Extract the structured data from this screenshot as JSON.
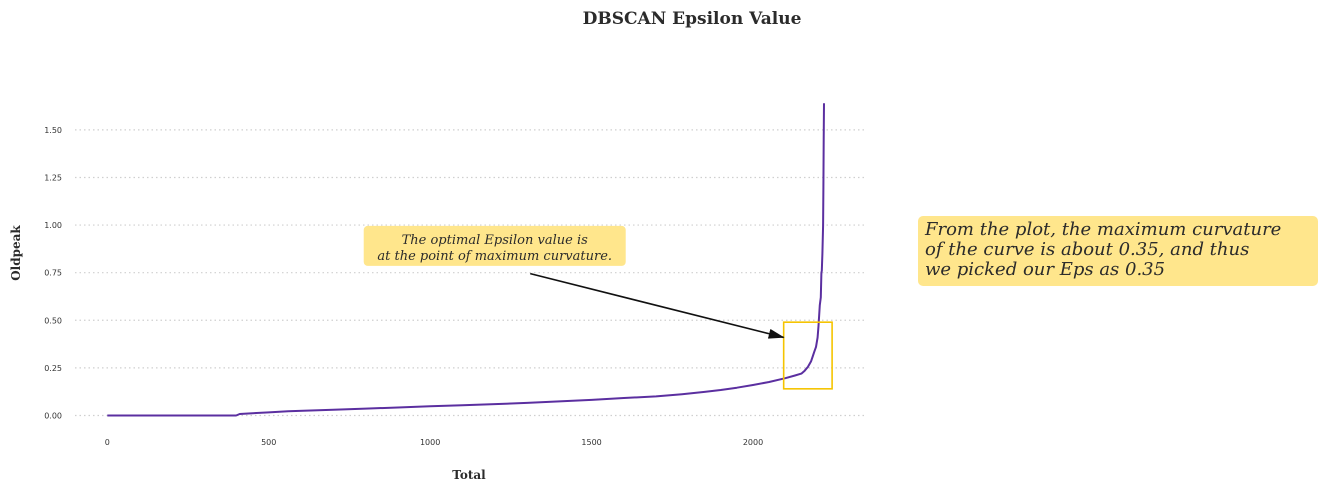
{
  "chart_data": {
    "type": "line",
    "title": "DBSCAN Epsilon Value",
    "xlabel": "Total",
    "ylabel": "Oldpeak",
    "xlim": [
      -100,
      2350
    ],
    "ylim": [
      -0.05,
      1.72
    ],
    "xticks": [
      0,
      500,
      1000,
      1500,
      2000
    ],
    "yticks": [
      0.0,
      0.25,
      0.5,
      0.75,
      1.0,
      1.25,
      1.5
    ],
    "xtick_labels": [
      "0",
      "500",
      "1000",
      "1500",
      "2000"
    ],
    "ytick_labels": [
      "0.00",
      "0.25",
      "0.50",
      "0.75",
      "1.00",
      "1.25",
      "1.50"
    ],
    "grid": "horizontal dotted",
    "series": [
      {
        "color": "#5b2fa0",
        "x": [
          0,
          390,
          399,
          410,
          450,
          500,
          560,
          700,
          800,
          900,
          1000,
          1100,
          1200,
          1300,
          1400,
          1500,
          1600,
          1700,
          1780,
          1850,
          1900,
          1950,
          2000,
          2050,
          2100,
          2130,
          2150,
          2160,
          2170,
          2180,
          2185,
          2190,
          2195,
          2200,
          2203,
          2207,
          2210,
          2212,
          2213,
          2215,
          2217,
          2218,
          2219,
          2220
        ],
        "y": [
          0.0,
          0.0,
          0.0,
          0.008,
          0.012,
          0.016,
          0.022,
          0.03,
          0.036,
          0.042,
          0.048,
          0.054,
          0.06,
          0.066,
          0.074,
          0.082,
          0.092,
          0.1,
          0.112,
          0.124,
          0.134,
          0.146,
          0.16,
          0.176,
          0.196,
          0.21,
          0.22,
          0.235,
          0.255,
          0.285,
          0.31,
          0.335,
          0.36,
          0.41,
          0.47,
          0.58,
          0.62,
          0.75,
          0.76,
          0.85,
          1.0,
          1.2,
          1.45,
          1.64
        ]
      }
    ],
    "highlight_box": {
      "color": "#f5c400",
      "x_range": [
        2095,
        2245
      ],
      "y_range": [
        0.14,
        0.49
      ]
    },
    "annotations": [
      {
        "text_lines": [
          "The optimal Epsilon value is",
          "at the point of maximum curvature."
        ],
        "text_at": [
          1200,
          0.88
        ],
        "arrow_tail": [
          1310,
          0.745
        ],
        "arrow_head": [
          2095,
          0.41
        ],
        "box_color": "#ffe68c"
      }
    ],
    "side_note": {
      "lines": [
        "From the plot, the maximum curvature",
        "of the curve is about 0.35, and thus",
        "we picked our Eps as 0.35"
      ],
      "box_color": "#ffe68c"
    }
  }
}
